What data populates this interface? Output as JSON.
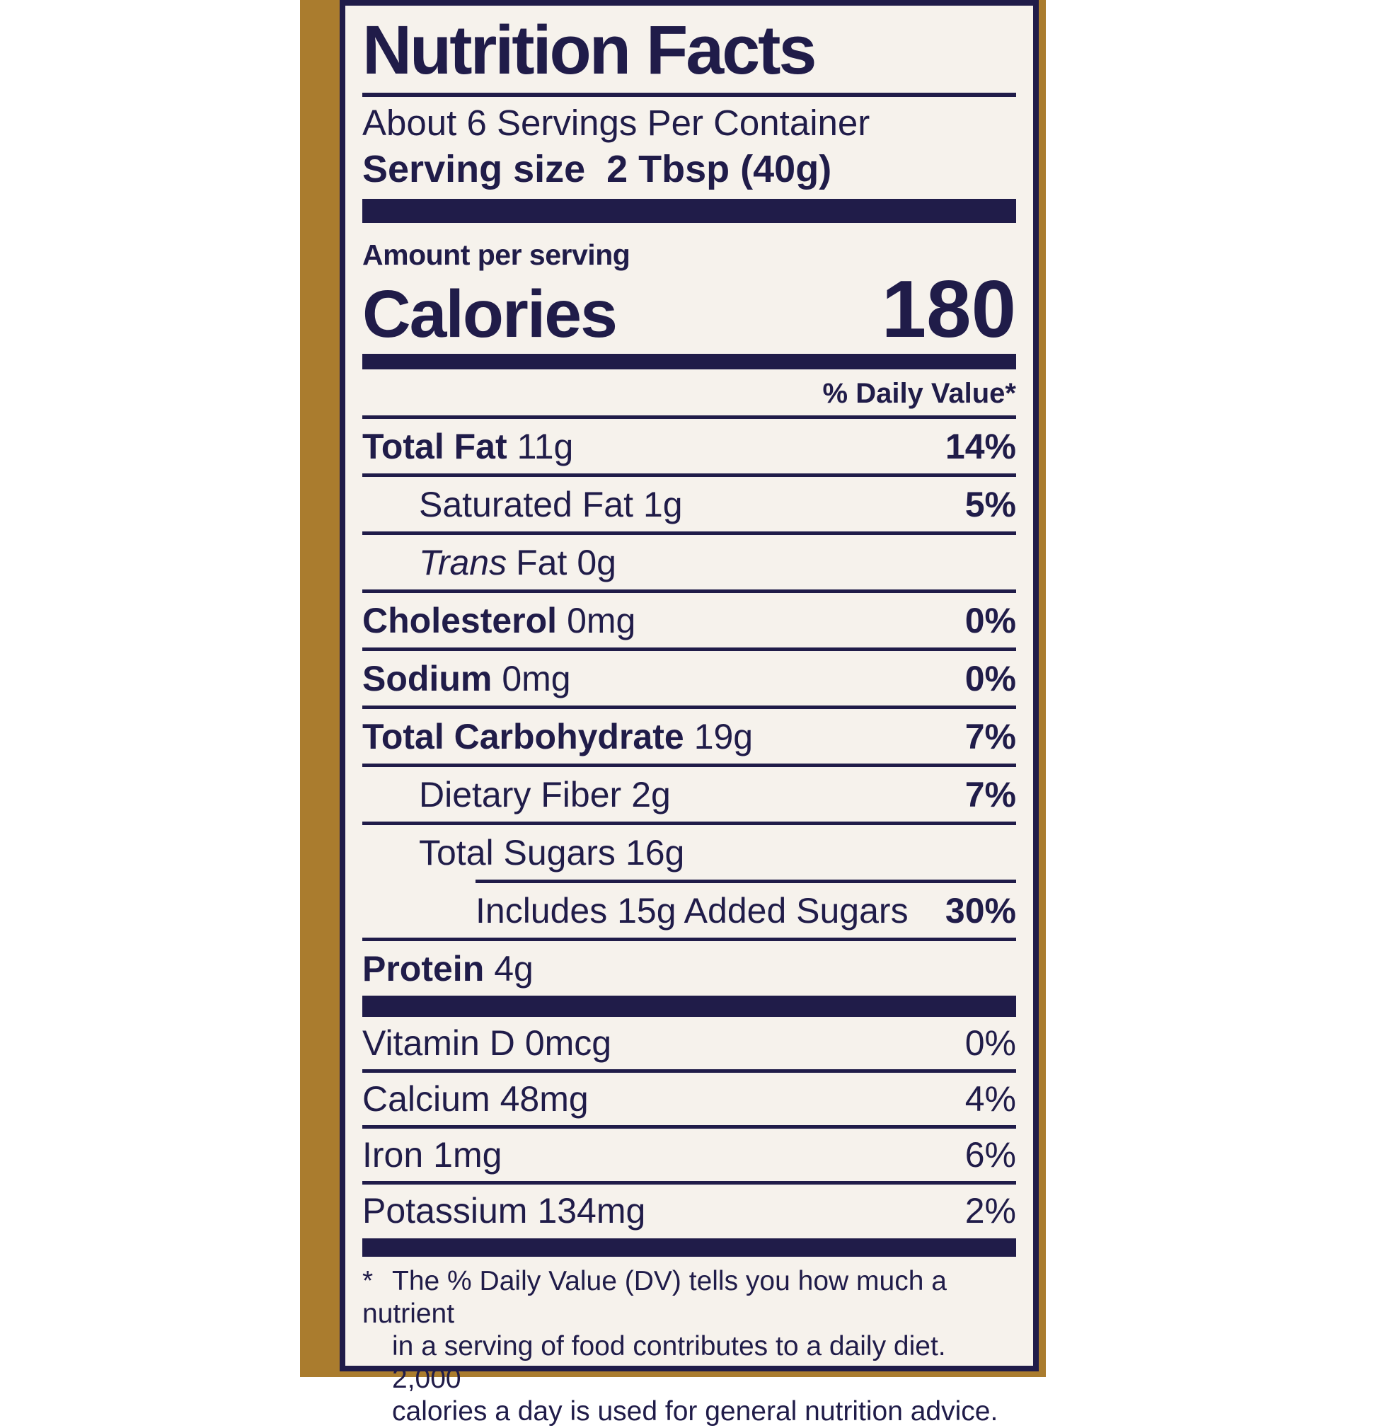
{
  "colors": {
    "text_navy": "#201c49",
    "package_gold": "#aa7c2e",
    "label_background": "#f6f2ec",
    "page_background": "#ffffff"
  },
  "label": {
    "title": "Nutrition Facts",
    "servings_per_container": "About 6 Servings Per Container",
    "serving_size_label": "Serving size",
    "serving_size_value": "2 Tbsp (40g)",
    "amount_per_serving": "Amount per serving",
    "calories_label": "Calories",
    "calories_value": "180",
    "daily_value_header": "% Daily Value*",
    "rows": [
      {
        "name": "Total Fat",
        "amount": "11g",
        "percent": "14%"
      },
      {
        "name": "Saturated Fat",
        "amount": "1g",
        "percent": "5%"
      },
      {
        "name_italic": "Trans",
        "name": "Fat",
        "amount": "0g",
        "percent": ""
      },
      {
        "name": "Cholesterol",
        "amount": "0mg",
        "percent": "0%"
      },
      {
        "name": "Sodium",
        "amount": "0mg",
        "percent": "0%"
      },
      {
        "name": "Total Carbohydrate",
        "amount": "19g",
        "percent": "7%"
      },
      {
        "name": "Dietary Fiber",
        "amount": "2g",
        "percent": "7%"
      },
      {
        "name": "Total Sugars",
        "amount": "16g",
        "percent": ""
      },
      {
        "name": "Includes 15g Added Sugars",
        "amount": "",
        "percent": "30%"
      },
      {
        "name": "Protein",
        "amount": "4g",
        "percent": ""
      }
    ],
    "vitamins": [
      {
        "name": "Vitamin D",
        "amount": "0mcg",
        "percent": "0%"
      },
      {
        "name": "Calcium",
        "amount": "48mg",
        "percent": "4%"
      },
      {
        "name": "Iron",
        "amount": "1mg",
        "percent": "6%"
      },
      {
        "name": "Potassium",
        "amount": "134mg",
        "percent": "2%"
      }
    ],
    "footnote_marker": "*",
    "footnote_lines": [
      "The % Daily Value (DV) tells you how much a nutrient",
      "in a serving of food contributes to a daily diet. 2,000",
      "calories a day is used for general nutrition advice."
    ]
  }
}
